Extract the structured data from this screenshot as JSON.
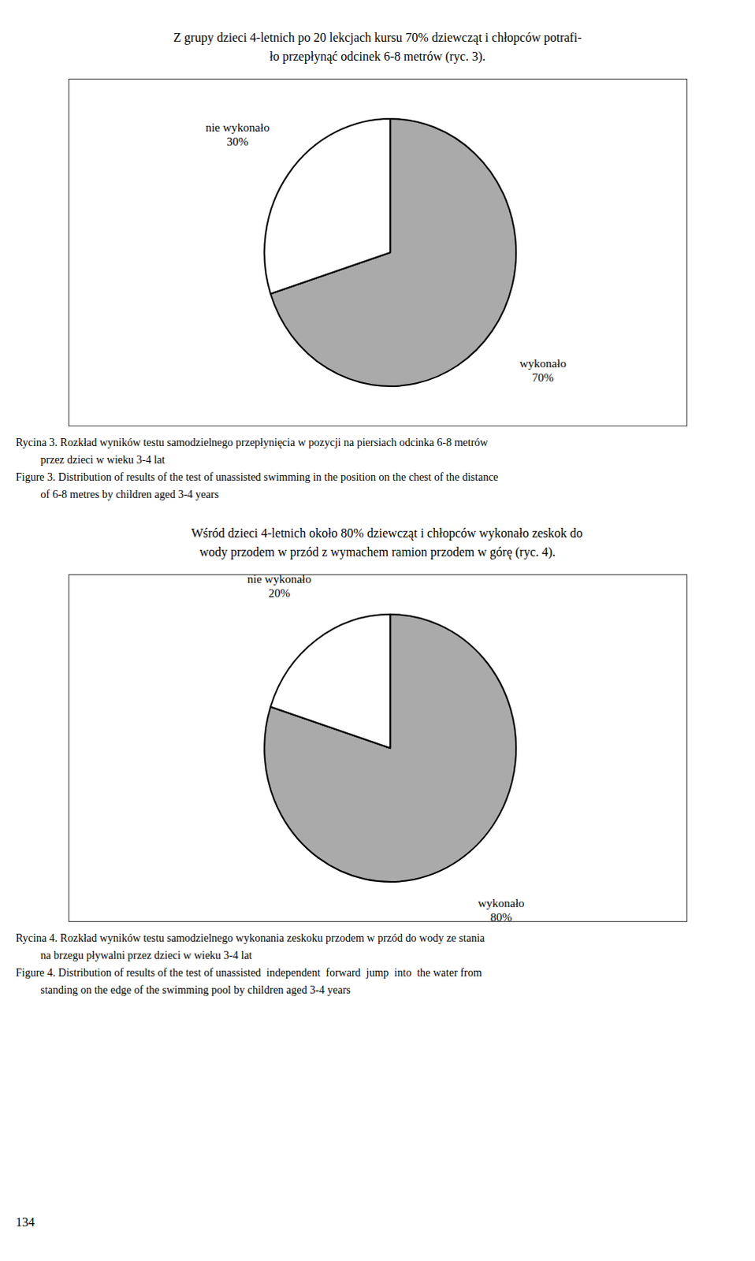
{
  "chart_data": [
    {
      "type": "pie",
      "title": "Rycina 3. Rozkład wyników testu samodzielnego przepłynięcia w pozycji na piersiach odcinka 6-8 metrów\n         przez dzieci w wieku 3-4 lat\nFigure 3. Distribution of results of the test of unassisted swimming in the position on the chest of the distance\n         of 6-8 metres by children aged 3-4 years",
      "annotations": [
        "Z grupy dzieci 4-letnich po 20 lekcjach kursu 70% dziewcząt i chłopców potrafi-",
        "ło przepłynąć odcinek 6-8 metrów (ryc. 3)."
      ],
      "categories": [
        "wykonało",
        "nie wykonało"
      ],
      "values": [
        70,
        30
      ],
      "value_labels": [
        "70%",
        "30%"
      ],
      "colors": [
        "#aaaaaa",
        "#ffffff"
      ],
      "data_labels": true
    },
    {
      "type": "pie",
      "title": "Rycina 4. Rozkład wyników testu samodzielnego wykonania zeskoku przodem w przód do wody ze stania\n         na brzegu pływalni przez dzieci w wieku 3-4 lat\nFigure 4. Distribution of results of the test of unassisted  independent  forward  jump  into  the water from\n         standing on the edge of the swimming pool by children aged 3-4 years",
      "annotations": [
        "      Wśród dzieci 4-letnich około 80% dziewcząt i chłopców wykonało zeskok do",
        "wody przodem w przód z wymachem ramion przodem w górę (ryc. 4).",
        "134"
      ],
      "categories": [
        "wykonało",
        "nie wykonało"
      ],
      "values": [
        80,
        20
      ],
      "value_labels": [
        "80%",
        "20%"
      ],
      "colors": [
        "#aaaaaa",
        "#ffffff"
      ],
      "data_labels": true
    }
  ]
}
